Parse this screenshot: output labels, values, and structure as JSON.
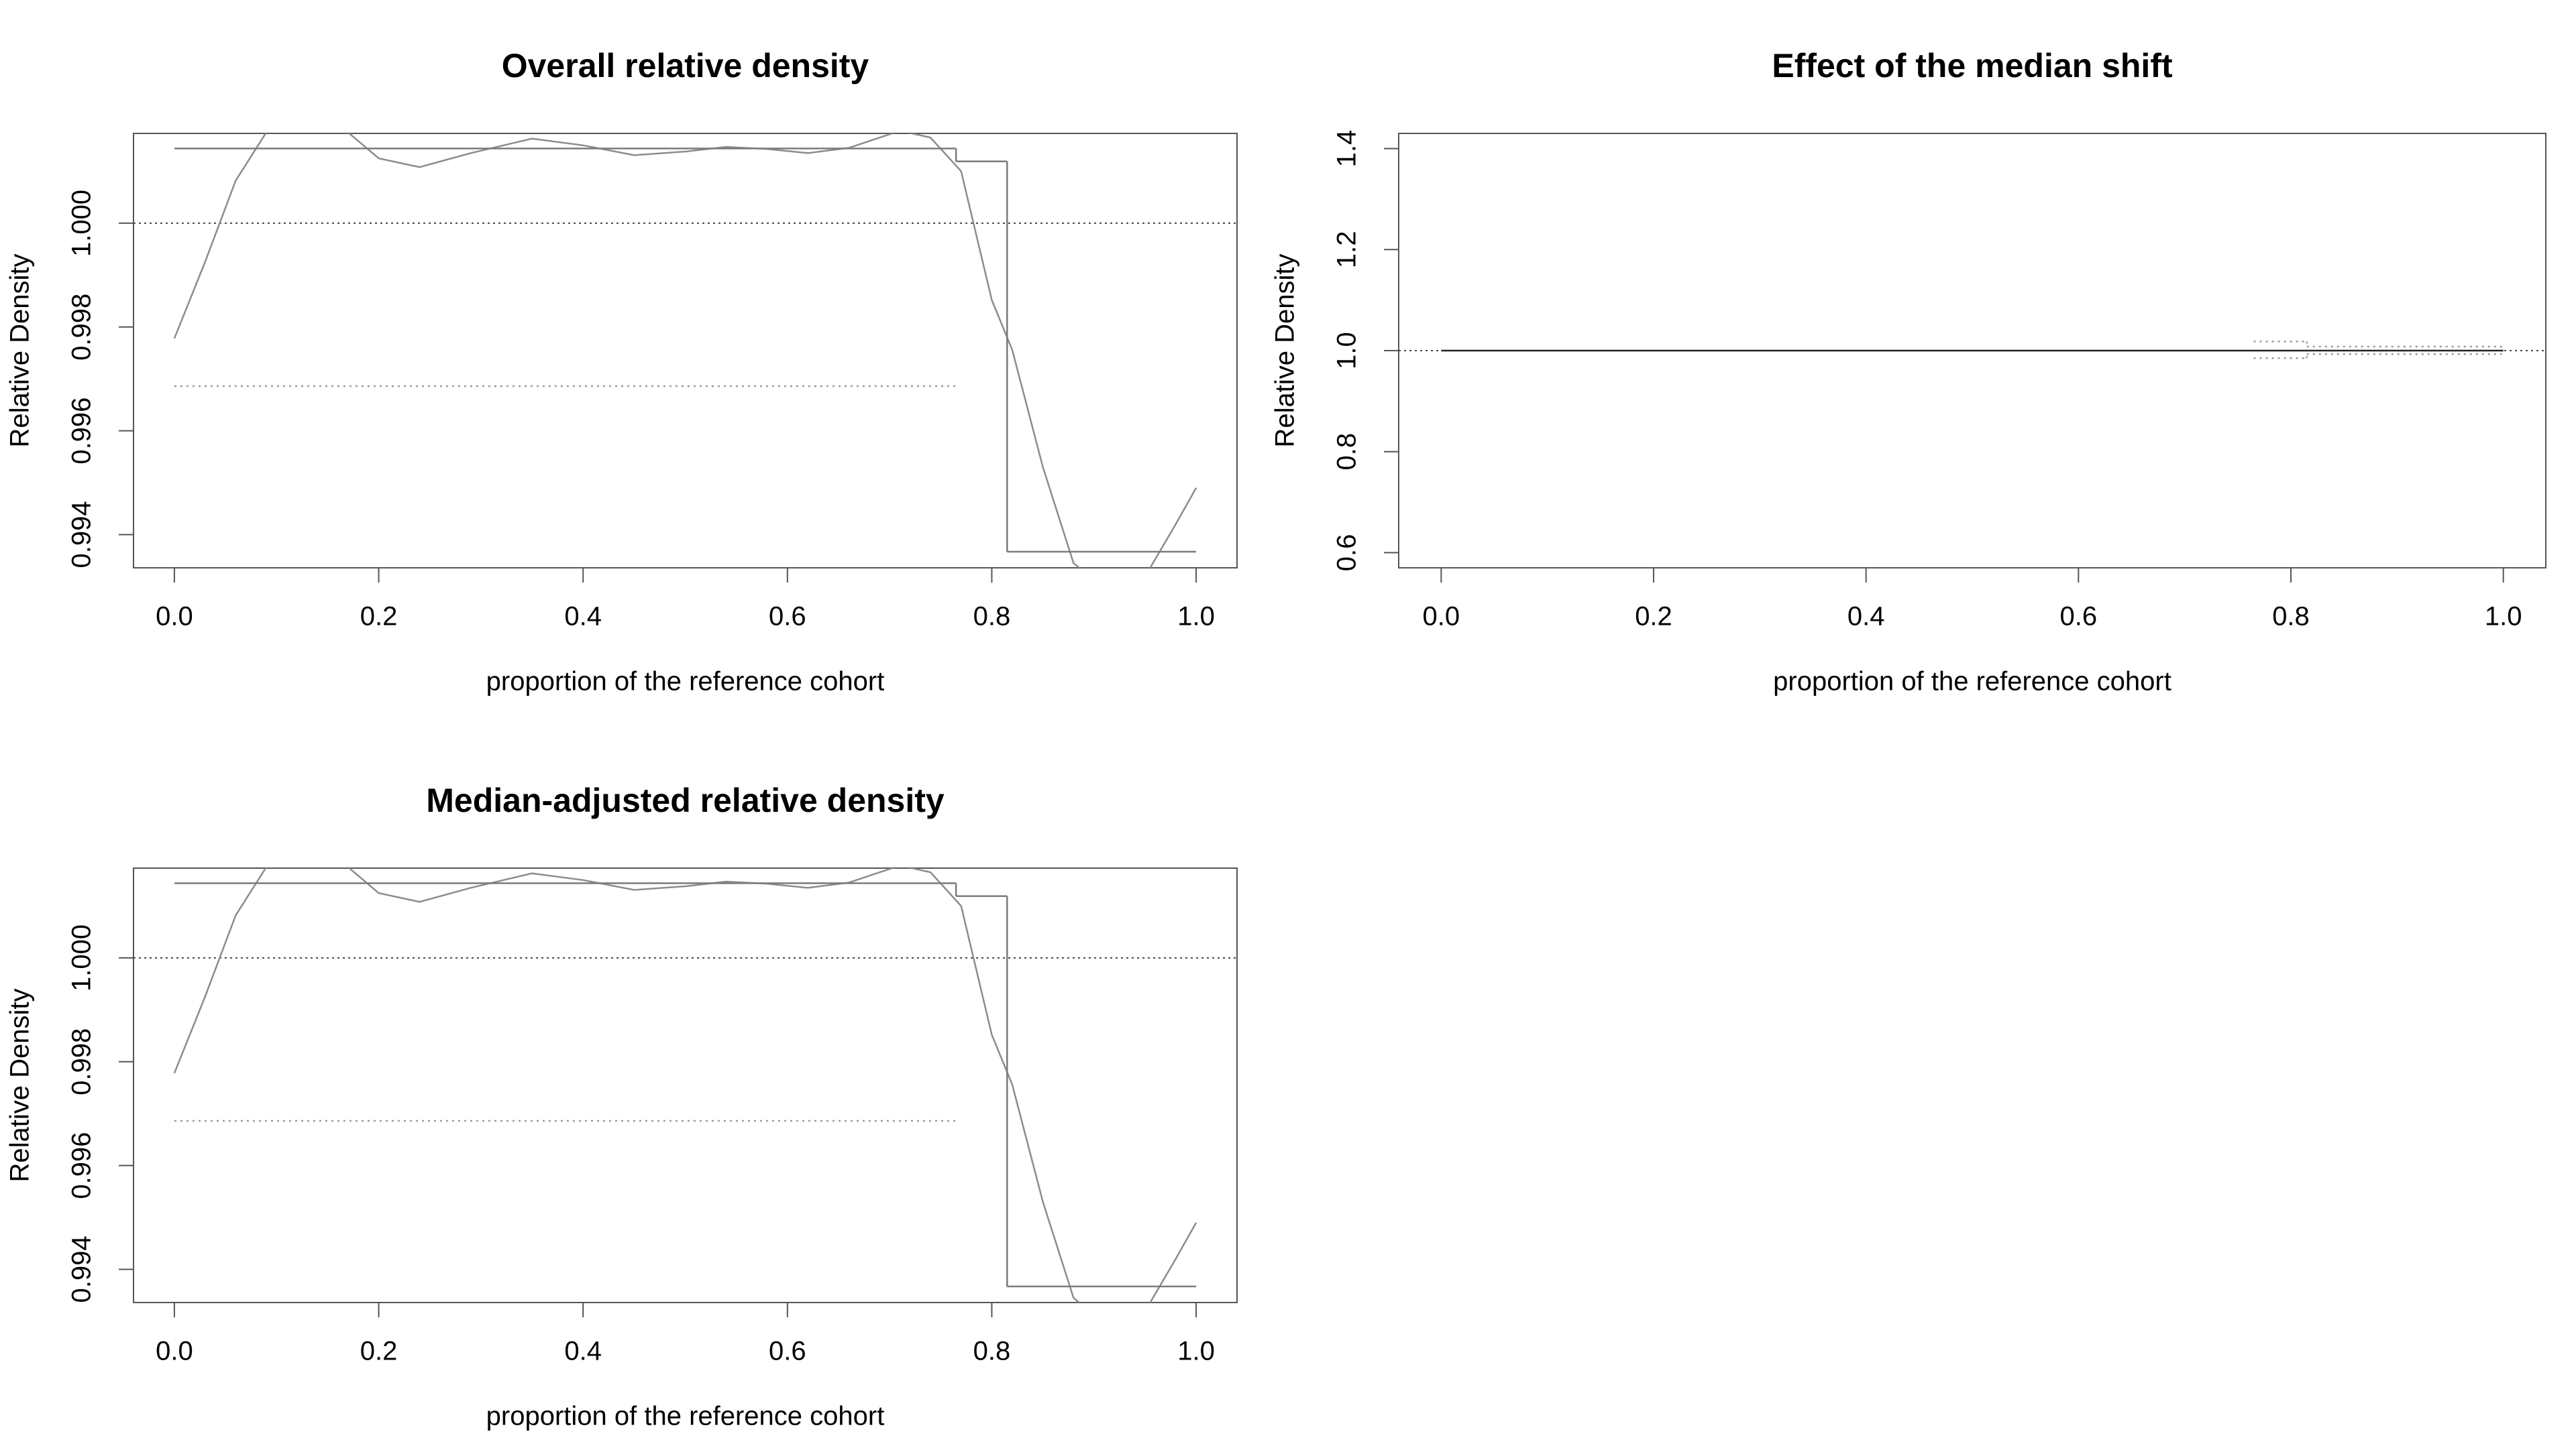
{
  "chart_data": [
    {
      "type": "line",
      "title": "Overall relative density",
      "xlabel": "proportion of the reference cohort",
      "ylabel": "Relative Density",
      "xlim": [
        -0.04,
        1.04
      ],
      "ylim": [
        0.99336,
        1.00173
      ],
      "xticks": [
        {
          "value": 0,
          "label": "0.0"
        },
        0.2,
        0.4,
        0.6,
        0.8,
        {
          "value": 1,
          "label": "1.0"
        }
      ],
      "yticks": [
        0.994,
        0.996,
        0.998,
        {
          "value": 1,
          "label": "1.000"
        }
      ],
      "reference_line": 1,
      "series": [
        {
          "kind": "curve",
          "style": "solid",
          "color": "#8c8c8c",
          "x": [
            0,
            0.03,
            0.06,
            0.09,
            0.13,
            0.17,
            0.2,
            0.24,
            0.29,
            0.35,
            0.4,
            0.45,
            0.5,
            0.54,
            0.58,
            0.62,
            0.66,
            0.71,
            0.74,
            0.77,
            0.8,
            0.82,
            0.85,
            0.88,
            0.92,
            0.955,
            0.98,
            1.0
          ],
          "values": [
            0.99778,
            0.99925,
            1.00082,
            1.00175,
            1.002,
            1.00175,
            1.00125,
            1.00108,
            1.00135,
            1.00163,
            1.0015,
            1.00131,
            1.00138,
            1.00147,
            1.00143,
            1.00135,
            1.00145,
            1.00178,
            1.00165,
            1.001,
            0.99852,
            0.99756,
            0.9953,
            0.99345,
            0.9928,
            0.99336,
            0.9942,
            0.9949
          ]
        },
        {
          "kind": "step",
          "style": "solid",
          "color": "#7a7a7a",
          "bins": [
            0,
            0.765,
            0.815,
            1.0
          ],
          "values": [
            1.00144,
            1.00119,
            0.99367
          ]
        },
        {
          "kind": "step",
          "style": "dotted",
          "color": "#9a9a9a",
          "bins": [
            0,
            0.765
          ],
          "values": [
            0.99686
          ]
        }
      ]
    },
    {
      "type": "line",
      "title": "Effect of the median shift",
      "xlabel": "proportion of the reference cohort",
      "ylabel": "Relative Density",
      "xlim": [
        -0.04,
        1.04
      ],
      "ylim": [
        0.57,
        1.43
      ],
      "xticks": [
        {
          "value": 0,
          "label": "0.0"
        },
        0.2,
        0.4,
        0.6,
        0.8,
        {
          "value": 1,
          "label": "1.0"
        }
      ],
      "yticks": [
        0.6,
        0.8,
        {
          "value": 1,
          "label": "1.0"
        },
        1.2,
        1.4
      ],
      "reference_line": 1,
      "series": [
        {
          "kind": "step",
          "style": "solid",
          "color": "#222222",
          "bins": [
            0,
            1.0
          ],
          "values": [
            1
          ]
        },
        {
          "kind": "step",
          "style": "dotted",
          "color": "#9a9a9a",
          "bins": [
            0.765,
            0.815,
            1.0
          ],
          "values": [
            1.018,
            1.008
          ]
        },
        {
          "kind": "step",
          "style": "dotted",
          "color": "#9a9a9a",
          "bins": [
            0.765,
            0.815,
            1.0
          ],
          "values": [
            0.985,
            0.993
          ]
        }
      ]
    },
    {
      "type": "line",
      "title": "Median-adjusted relative density",
      "xlabel": "proportion of the reference cohort",
      "ylabel": "Relative Density",
      "xlim": [
        -0.04,
        1.04
      ],
      "ylim": [
        0.99336,
        1.00173
      ],
      "xticks": [
        {
          "value": 0,
          "label": "0.0"
        },
        0.2,
        0.4,
        0.6,
        0.8,
        {
          "value": 1,
          "label": "1.0"
        }
      ],
      "yticks": [
        0.994,
        0.996,
        0.998,
        {
          "value": 1,
          "label": "1.000"
        }
      ],
      "reference_line": 1,
      "series": [
        {
          "kind": "curve",
          "style": "solid",
          "color": "#8c8c8c",
          "x": [
            0,
            0.03,
            0.06,
            0.09,
            0.13,
            0.17,
            0.2,
            0.24,
            0.29,
            0.35,
            0.4,
            0.45,
            0.5,
            0.54,
            0.58,
            0.62,
            0.66,
            0.71,
            0.74,
            0.77,
            0.8,
            0.82,
            0.85,
            0.88,
            0.92,
            0.955,
            0.98,
            1.0
          ],
          "values": [
            0.99778,
            0.99925,
            1.00082,
            1.00175,
            1.002,
            1.00175,
            1.00125,
            1.00108,
            1.00135,
            1.00163,
            1.0015,
            1.00131,
            1.00138,
            1.00147,
            1.00143,
            1.00135,
            1.00145,
            1.00178,
            1.00165,
            1.001,
            0.99852,
            0.99756,
            0.9953,
            0.99345,
            0.9928,
            0.99336,
            0.9942,
            0.9949
          ]
        },
        {
          "kind": "step",
          "style": "solid",
          "color": "#7a7a7a",
          "bins": [
            0,
            0.765,
            0.815,
            1.0
          ],
          "values": [
            1.00144,
            1.00119,
            0.99367
          ]
        },
        {
          "kind": "step",
          "style": "dotted",
          "color": "#9a9a9a",
          "bins": [
            0,
            0.765
          ],
          "values": [
            0.99686
          ]
        }
      ]
    }
  ]
}
